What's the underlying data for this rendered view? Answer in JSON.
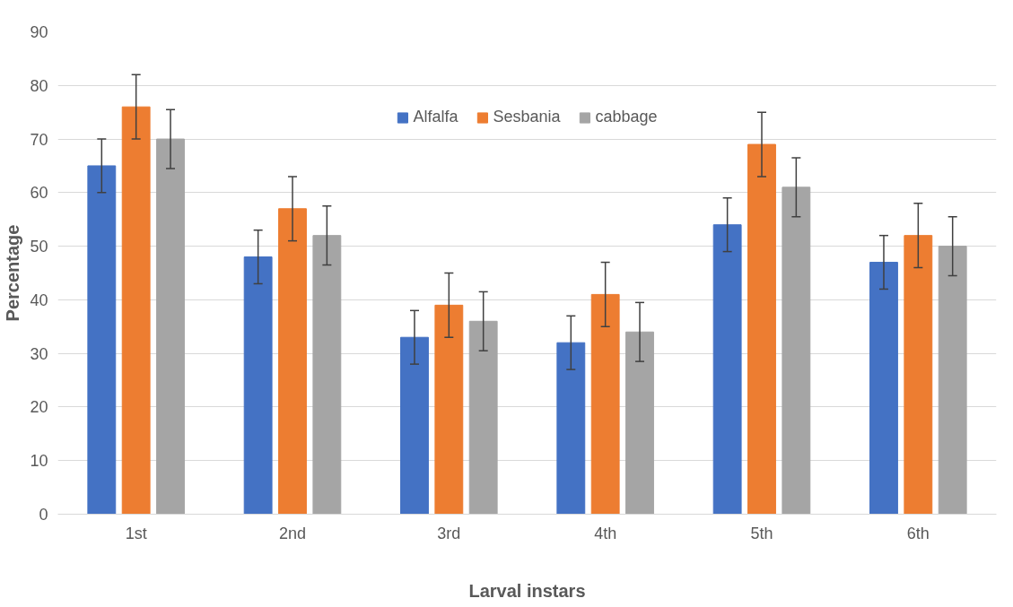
{
  "chart_data": {
    "type": "bar",
    "xlabel": "Larval instars",
    "ylabel": "Percentage",
    "categories": [
      "1st",
      "2nd",
      "3rd",
      "4th",
      "5th",
      "6th"
    ],
    "series": [
      {
        "name": "Alfalfa",
        "color": "#4472c4",
        "values": [
          65,
          48,
          33,
          32,
          54,
          47
        ],
        "errors": [
          5,
          5,
          5,
          5,
          5,
          5
        ]
      },
      {
        "name": "Sesbania",
        "color": "#ed7d31",
        "values": [
          76,
          57,
          39,
          41,
          69,
          52
        ],
        "errors": [
          6,
          6,
          6,
          6,
          6,
          6
        ]
      },
      {
        "name": "cabbage",
        "color": "#a5a5a5",
        "values": [
          70,
          52,
          36,
          34,
          61,
          50
        ],
        "errors": [
          5.5,
          5.5,
          5.5,
          5.5,
          5.5,
          5.5
        ]
      }
    ],
    "ylim": [
      0,
      90
    ],
    "yticks": [
      0,
      10,
      20,
      30,
      40,
      50,
      60,
      70,
      80,
      90
    ],
    "grid": "y",
    "legend": "top"
  }
}
